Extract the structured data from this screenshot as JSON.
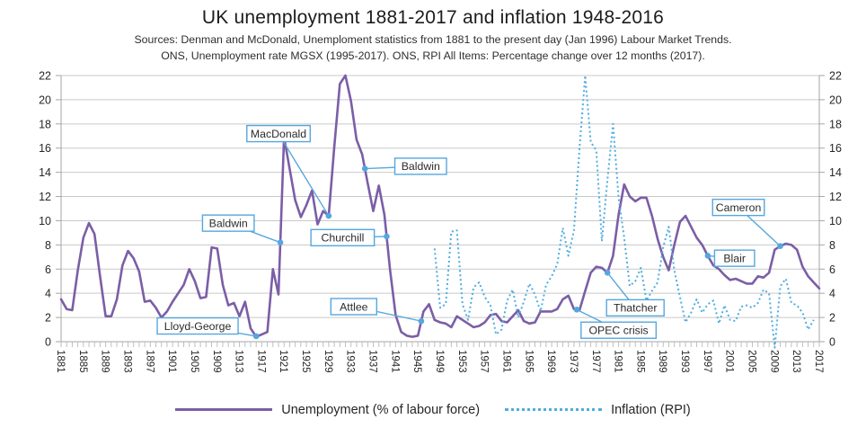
{
  "page": {
    "title": "UK unemployment 1881-2017 and inflation 1948-2016",
    "sources": [
      "Sources: Denman and McDonald, Unemploment statistics from 1881 to the present day (Jan 1996) Labour Market Trends.",
      "ONS, Unemployment rate MGSX (1995-2017). ONS, RPI All Items: Percentage change over 12 months (2017)."
    ]
  },
  "colors": {
    "unemployment": "#7B5EA6",
    "inflation": "#4FADE0",
    "annotation": "#56A7DE",
    "annotation_text": "#2b2b2b",
    "gridline": "#C9C9C9",
    "axis": "#A6A6A6",
    "tick": "#BFBFBF",
    "text": "#262626"
  },
  "legend": {
    "items": [
      {
        "label": "Unemployment (% of labour force)",
        "series": "unemployment",
        "line_style": "solid"
      },
      {
        "label": "Inflation (RPI)",
        "series": "inflation",
        "line_style": "dotted"
      }
    ]
  },
  "chart_data": {
    "type": "line",
    "title": "UK unemployment 1881-2017 and inflation 1948-2016",
    "grid": "horizontal",
    "legend_position": "bottom",
    "x_axis": {
      "start": 1881,
      "end": 2017,
      "label_every": 4,
      "minor_tick_every": 1
    },
    "y_axis": {
      "min": 0,
      "max": 22,
      "step": 2,
      "sides": [
        "left",
        "right"
      ],
      "clip_above_max": true
    },
    "series": [
      {
        "key": "unemployment",
        "name": "Unemployment (% of labour force)",
        "style": "solid",
        "start_year": 1881,
        "values": [
          3.5,
          2.7,
          2.6,
          5.9,
          8.6,
          9.8,
          8.9,
          5.4,
          2.1,
          2.1,
          3.5,
          6.3,
          7.5,
          6.9,
          5.8,
          3.3,
          3.4,
          2.8,
          2.0,
          2.5,
          3.3,
          4.0,
          4.7,
          6.0,
          5.0,
          3.6,
          3.7,
          7.8,
          7.7,
          4.7,
          3.0,
          3.2,
          2.1,
          3.3,
          1.1,
          0.4,
          0.6,
          0.8,
          6.0,
          3.9,
          16.9,
          14.3,
          11.7,
          10.3,
          11.3,
          12.5,
          9.7,
          10.8,
          10.4,
          16.1,
          21.3,
          22.1,
          19.9,
          16.7,
          15.5,
          13.1,
          10.8,
          12.9,
          10.5,
          6.0,
          2.2,
          0.8,
          0.5,
          0.4,
          0.5,
          2.5,
          3.1,
          1.8,
          1.6,
          1.5,
          1.2,
          2.1,
          1.8,
          1.5,
          1.2,
          1.3,
          1.6,
          2.2,
          2.3,
          1.7,
          1.6,
          2.1,
          2.6,
          1.7,
          1.5,
          1.6,
          2.5,
          2.5,
          2.5,
          2.7,
          3.5,
          3.8,
          2.7,
          2.6,
          4.2,
          5.7,
          6.2,
          6.1,
          5.7,
          7.1,
          10.5,
          13.0,
          12.0,
          11.6,
          11.9,
          11.9,
          10.4,
          8.5,
          7.0,
          5.9,
          8.0,
          9.9,
          10.4,
          9.5,
          8.6,
          8.0,
          7.1,
          6.3,
          6.0,
          5.5,
          5.1,
          5.2,
          5.0,
          4.8,
          4.8,
          5.4,
          5.3,
          5.7,
          7.6,
          7.9,
          8.1,
          8.0,
          7.6,
          6.2,
          5.4,
          4.9,
          4.4
        ]
      },
      {
        "key": "inflation",
        "name": "Inflation (RPI)",
        "style": "dotted",
        "start_year": 1948,
        "values": [
          7.7,
          2.8,
          3.1,
          9.1,
          9.2,
          3.1,
          1.8,
          4.5,
          4.9,
          3.7,
          3.0,
          0.6,
          1.0,
          3.4,
          4.3,
          2.0,
          3.3,
          4.8,
          3.9,
          2.5,
          4.7,
          5.4,
          6.4,
          9.4,
          7.1,
          9.2,
          16.0,
          24.2,
          16.5,
          15.8,
          8.3,
          13.4,
          18.0,
          11.9,
          8.6,
          4.6,
          5.0,
          6.1,
          3.4,
          4.2,
          4.9,
          7.8,
          9.5,
          5.9,
          3.7,
          1.6,
          2.4,
          3.5,
          2.4,
          3.1,
          3.4,
          1.5,
          3.0,
          1.8,
          1.7,
          2.9,
          3.0,
          2.8,
          3.2,
          4.3,
          4.0,
          -0.5,
          4.6,
          5.2,
          3.2,
          3.0,
          2.4,
          1.0,
          1.8
        ]
      }
    ],
    "annotations": [
      {
        "label": "Lloyd-George",
        "anchor": [
          1916.0,
          0.45
        ],
        "box_center": [
          1905.5,
          1.3
        ]
      },
      {
        "label": "Baldwin",
        "anchor": [
          1920.33,
          8.2
        ],
        "box_center": [
          1911.0,
          9.8
        ]
      },
      {
        "label": "MacDonald",
        "anchor": [
          1929.0,
          10.4
        ],
        "box_center": [
          1920.0,
          17.2
        ]
      },
      {
        "label": "Churchill",
        "anchor": [
          1939.4,
          8.7
        ],
        "box_center": [
          1931.5,
          8.6
        ]
      },
      {
        "label": "Baldwin",
        "anchor": [
          1935.5,
          14.3
        ],
        "box_center": [
          1945.5,
          14.5
        ]
      },
      {
        "label": "Attlee",
        "anchor": [
          1945.6,
          1.7
        ],
        "box_center": [
          1933.5,
          2.9
        ]
      },
      {
        "label": "OPEC crisis",
        "anchor": [
          1973.5,
          2.65
        ],
        "box_center": [
          1981.0,
          0.95
        ]
      },
      {
        "label": "Thatcher",
        "anchor": [
          1979.0,
          5.7
        ],
        "box_center": [
          1984.0,
          2.8
        ]
      },
      {
        "label": "Blair",
        "anchor": [
          1997.0,
          7.1
        ],
        "box_center": [
          2001.8,
          6.9
        ]
      },
      {
        "label": "Cameron",
        "anchor": [
          2010.0,
          7.9
        ],
        "box_center": [
          2002.5,
          11.1
        ]
      }
    ]
  }
}
